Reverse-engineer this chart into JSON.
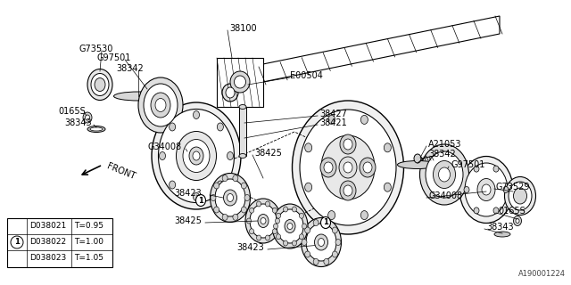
{
  "bg": "#ffffff",
  "lc": "#000000",
  "watermark": "A190001224",
  "table_rows": [
    [
      "D038021",
      "T=0.95"
    ],
    [
      "D038022",
      "T=1.00"
    ],
    [
      "D038023",
      "T=1.05"
    ]
  ]
}
